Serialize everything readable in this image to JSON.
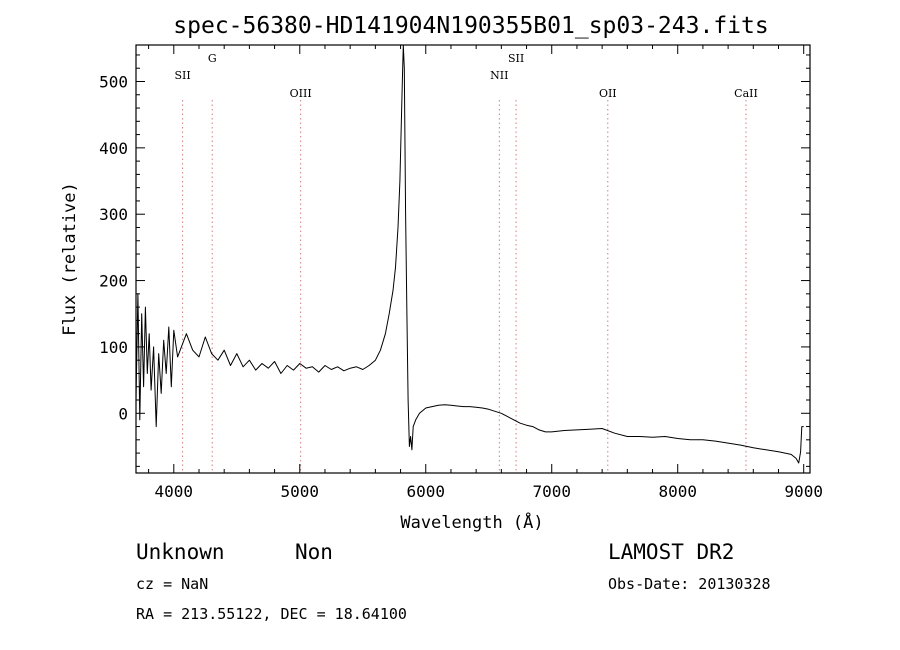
{
  "chart_data": {
    "type": "line",
    "title": "spec-56380-HD141904N190355B01_sp03-243.fits",
    "xlabel": "Wavelength (Å)",
    "ylabel": "Flux (relative)",
    "xlim": [
      3700,
      9050
    ],
    "ylim": [
      -90,
      555
    ],
    "xticks": [
      4000,
      5000,
      6000,
      7000,
      8000,
      9000
    ],
    "yticks": [
      0,
      100,
      200,
      300,
      400,
      500
    ],
    "grid": false,
    "line_color": "#000000",
    "marker_color": "#d08080",
    "emission_lines": [
      {
        "label": "SII",
        "wavelength": 4070,
        "row": "low"
      },
      {
        "label": "G",
        "wavelength": 4305,
        "row": "high"
      },
      {
        "label": "OIII",
        "wavelength": 5007,
        "row": "mid"
      },
      {
        "label": "NII",
        "wavelength": 6584,
        "row": "low"
      },
      {
        "label": "SII",
        "wavelength": 6717,
        "row": "high"
      },
      {
        "label": "OII",
        "wavelength": 7445,
        "row": "mid"
      },
      {
        "label": "CaII",
        "wavelength": 8542,
        "row": "mid"
      }
    ],
    "series": [
      {
        "x": [
          3700,
          3715,
          3730,
          3745,
          3760,
          3775,
          3790,
          3805,
          3820,
          3840,
          3860,
          3880,
          3900,
          3920,
          3940,
          3960,
          3980,
          4000,
          4030,
          4060,
          4100,
          4150,
          4200,
          4250,
          4300,
          4350,
          4400,
          4450,
          4500,
          4550,
          4600,
          4650,
          4700,
          4750,
          4800,
          4850,
          4900,
          4950,
          5000,
          5050,
          5100,
          5150,
          5200,
          5250,
          5300,
          5350,
          5400,
          5450,
          5500,
          5550,
          5600,
          5640,
          5680,
          5710,
          5740,
          5760,
          5780,
          5795,
          5805,
          5815,
          5822,
          5830,
          5840,
          5850,
          5860,
          5870,
          5880,
          5890,
          5900,
          5920,
          5950,
          6000,
          6050,
          6100,
          6150,
          6200,
          6250,
          6300,
          6350,
          6400,
          6450,
          6500,
          6550,
          6600,
          6650,
          6700,
          6750,
          6800,
          6850,
          6900,
          6950,
          7000,
          7100,
          7200,
          7300,
          7400,
          7500,
          7600,
          7700,
          7800,
          7900,
          8000,
          8100,
          8200,
          8300,
          8400,
          8500,
          8600,
          8700,
          8800,
          8900,
          8940,
          8960,
          8975,
          8985,
          9000
        ],
        "y": [
          20,
          180,
          -10,
          150,
          40,
          160,
          60,
          120,
          35,
          100,
          -20,
          90,
          30,
          110,
          60,
          130,
          40,
          125,
          85,
          100,
          120,
          95,
          85,
          115,
          90,
          80,
          95,
          72,
          90,
          70,
          80,
          65,
          75,
          68,
          78,
          60,
          72,
          65,
          75,
          68,
          70,
          62,
          72,
          66,
          70,
          64,
          68,
          70,
          66,
          72,
          80,
          95,
          120,
          150,
          185,
          220,
          280,
          350,
          430,
          510,
          555,
          520,
          300,
          150,
          20,
          -50,
          -35,
          -55,
          -20,
          -10,
          0,
          8,
          10,
          12,
          13,
          12,
          11,
          10,
          10,
          9,
          8,
          6,
          3,
          0,
          -5,
          -10,
          -15,
          -18,
          -20,
          -25,
          -28,
          -28,
          -26,
          -25,
          -24,
          -23,
          -30,
          -35,
          -35,
          -36,
          -35,
          -38,
          -40,
          -40,
          -42,
          -45,
          -48,
          -52,
          -55,
          -58,
          -62,
          -68,
          -75,
          -58,
          -20,
          -20
        ]
      }
    ]
  },
  "footer": {
    "class": "Unknown",
    "subclass": "Non",
    "survey": "LAMOST DR2",
    "cz": "cz = NaN",
    "obs_date": "Obs-Date: 20130328",
    "coords": "RA = 213.55122, DEC =  18.64100"
  }
}
